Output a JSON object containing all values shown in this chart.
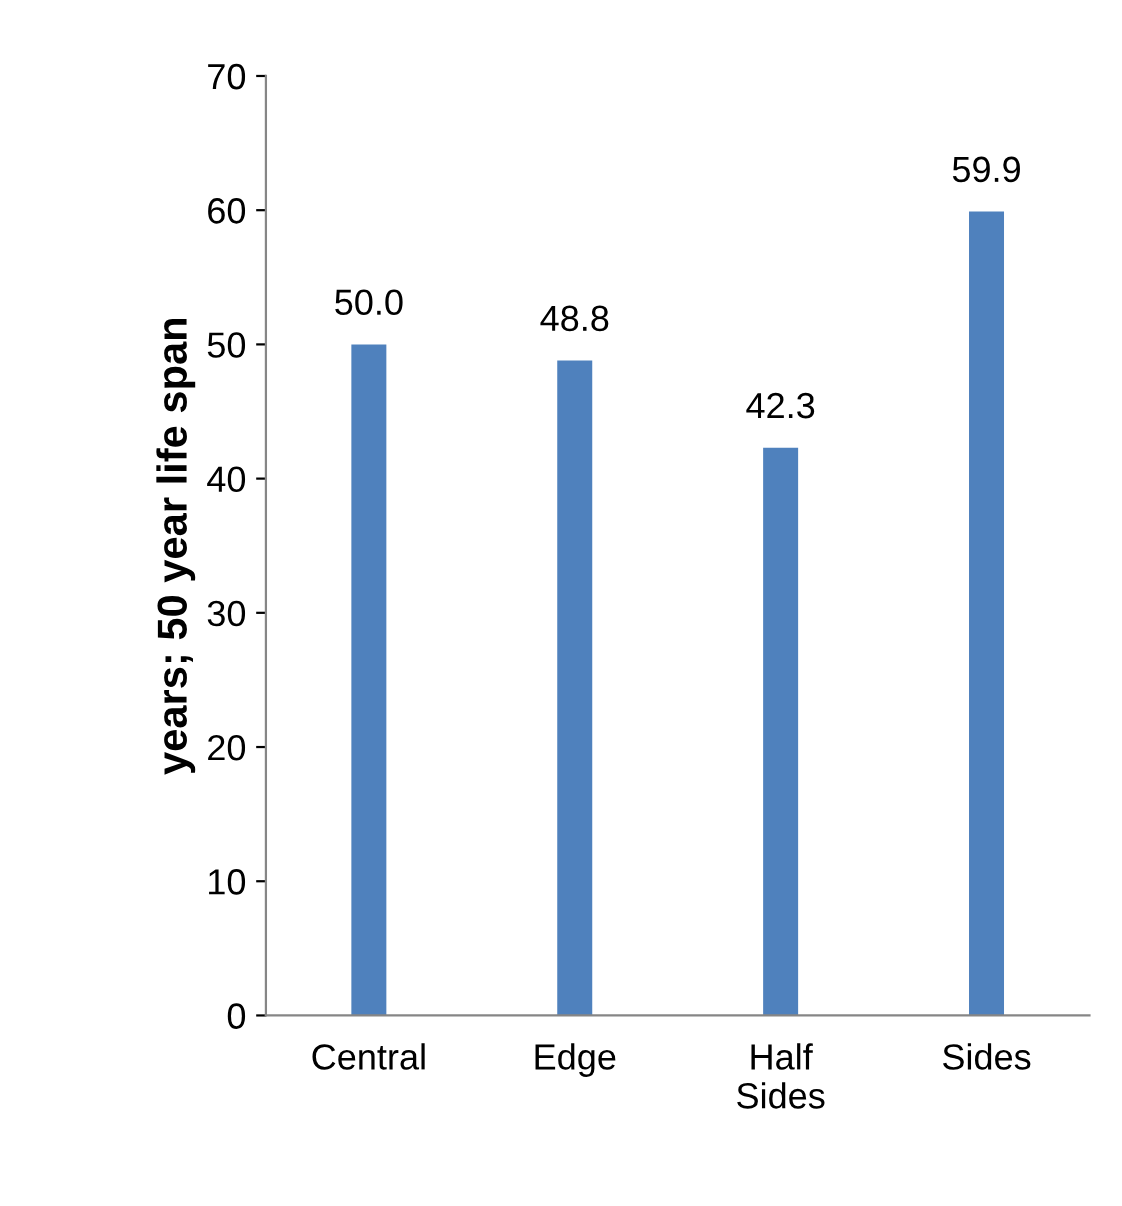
{
  "chart_data": {
    "type": "bar",
    "ylabel": "years; 50 year life span",
    "categories": [
      "Central",
      "Edge",
      "Half Sides",
      "Sides"
    ],
    "values": [
      50.0,
      48.8,
      42.3,
      59.9
    ],
    "value_labels": [
      "50.0",
      "48.8",
      "42.3",
      "59.9"
    ],
    "color": "#4f81bd",
    "ylim": [
      0,
      70
    ],
    "yticks": [
      0,
      10,
      20,
      30,
      40,
      50,
      60,
      70
    ],
    "grid": false
  }
}
